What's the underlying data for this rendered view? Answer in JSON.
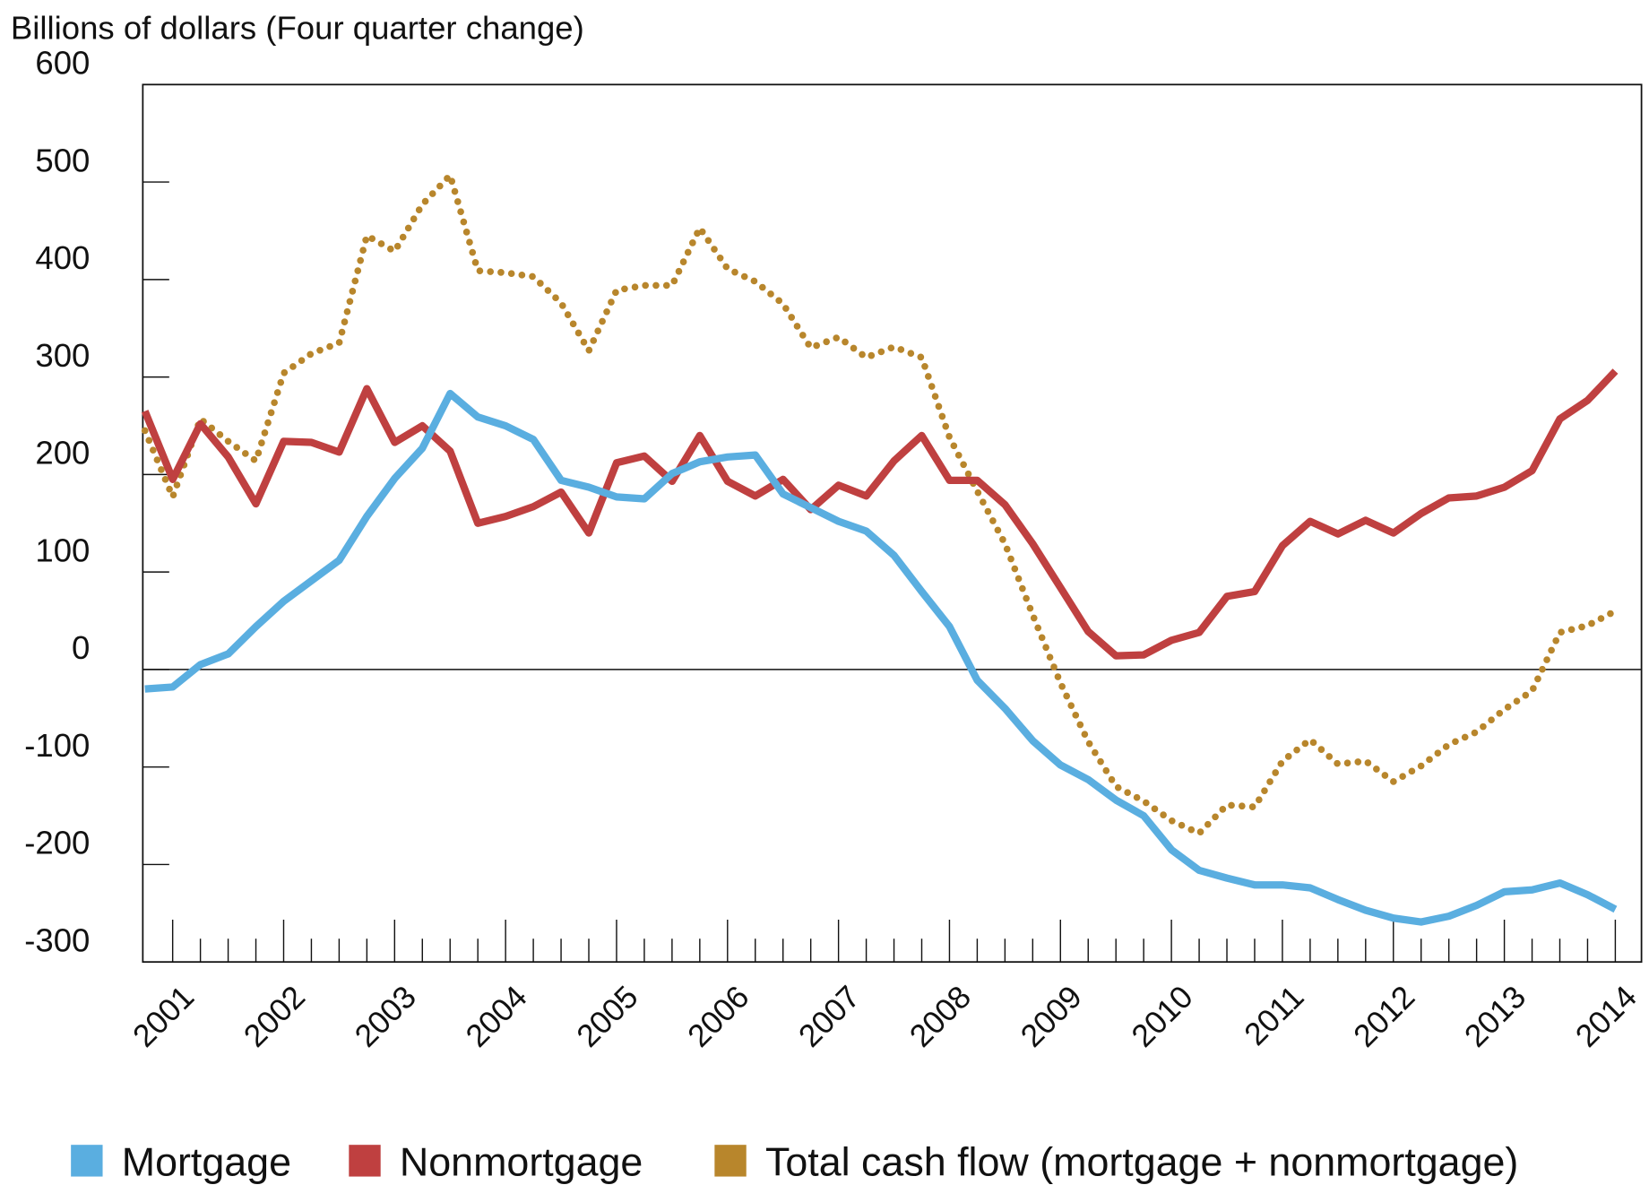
{
  "chart_data": {
    "type": "line",
    "title": "",
    "ylabel": "Billions of dollars (Four quarter change)",
    "xlabel": "",
    "ylim": [
      -300,
      600
    ],
    "yticks": [
      600,
      500,
      400,
      300,
      200,
      100,
      0,
      -100,
      -200,
      -300
    ],
    "x_tick_labels": [
      "2001",
      "2002",
      "2003",
      "2004",
      "2005",
      "2006",
      "2007",
      "2008",
      "2009",
      "2010",
      "2011",
      "2012",
      "2013",
      "2014"
    ],
    "x_frequency": "quarterly",
    "x_start": "2000Q4",
    "x_end": "2014Q1",
    "grid": false,
    "zero_line": true,
    "legend_position": "bottom",
    "series": [
      {
        "name": "Mortgage",
        "color": "#5aaee0",
        "style": "solid",
        "values": [
          -20,
          -18,
          5,
          16,
          44,
          70,
          91,
          112,
          157,
          196,
          227,
          283,
          259,
          250,
          236,
          194,
          187,
          177,
          175,
          201,
          213,
          218,
          220,
          180,
          166,
          152,
          142,
          117,
          80,
          44,
          -11,
          -40,
          -73,
          -98,
          -113,
          -134,
          -150,
          -185,
          -206,
          -214,
          -221,
          -221,
          -224,
          -236,
          -247,
          -255,
          -259,
          -253,
          -242,
          -228,
          -226,
          -219,
          -231,
          -246
        ]
      },
      {
        "name": "Nonmortgage",
        "color": "#bf4040",
        "style": "solid",
        "values": [
          265,
          195,
          252,
          218,
          170,
          234,
          233,
          223,
          288,
          233,
          250,
          224,
          150,
          157,
          167,
          182,
          140,
          212,
          219,
          193,
          240,
          193,
          178,
          195,
          164,
          189,
          178,
          214,
          240,
          194,
          194,
          169,
          129,
          84,
          39,
          14,
          15,
          30,
          38,
          75,
          80,
          127,
          152,
          139,
          153,
          140,
          160,
          176,
          178,
          187,
          204,
          257,
          276,
          306
        ]
      },
      {
        "name": "Total cash flow (mortgage + nonmortgage)",
        "color": "#b8862c",
        "style": "dotted",
        "values": [
          245,
          177,
          257,
          234,
          214,
          304,
          324,
          335,
          445,
          429,
          477,
          507,
          409,
          407,
          403,
          376,
          327,
          389,
          394,
          394,
          453,
          411,
          398,
          375,
          330,
          341,
          320,
          331,
          320,
          238,
          183,
          129,
          56,
          -14,
          -74,
          -120,
          -135,
          -155,
          -168,
          -139,
          -141,
          -94,
          -72,
          -97,
          -94,
          -115,
          -99,
          -77,
          -64,
          -41,
          -22,
          38,
          45,
          60
        ]
      }
    ]
  }
}
